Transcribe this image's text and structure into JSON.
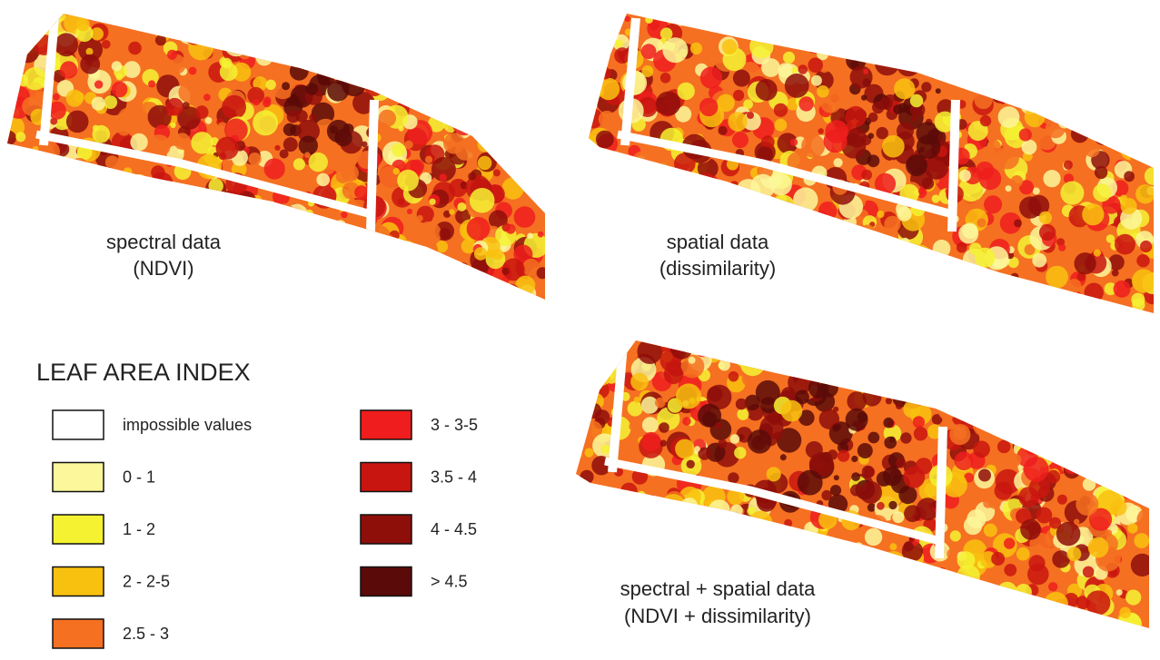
{
  "panels": [
    {
      "line1": "spectral data",
      "line2": "(NDVI)"
    },
    {
      "line1": "spatial data",
      "line2": "(dissimilarity)"
    },
    {
      "line1": "spectral + spatial data",
      "line2": "(NDVI + dissimilarity)"
    }
  ],
  "legend": {
    "title": "LEAF AREA INDEX",
    "items": [
      {
        "label": "impossible values",
        "color": "#ffffff"
      },
      {
        "label": "0 - 1",
        "color": "#fbf79a"
      },
      {
        "label": "1 - 2",
        "color": "#f5f232"
      },
      {
        "label": "2 - 2-5",
        "color": "#f9c10f"
      },
      {
        "label": "2.5 - 3",
        "color": "#f57021"
      },
      {
        "label": "3 - 3-5",
        "color": "#ef1d1d"
      },
      {
        "label": "3.5 - 4",
        "color": "#c9150f"
      },
      {
        "label": "4 - 4.5",
        "color": "#8e0e0a"
      },
      {
        "label": "> 4.5",
        "color": "#5a0a08"
      }
    ]
  }
}
